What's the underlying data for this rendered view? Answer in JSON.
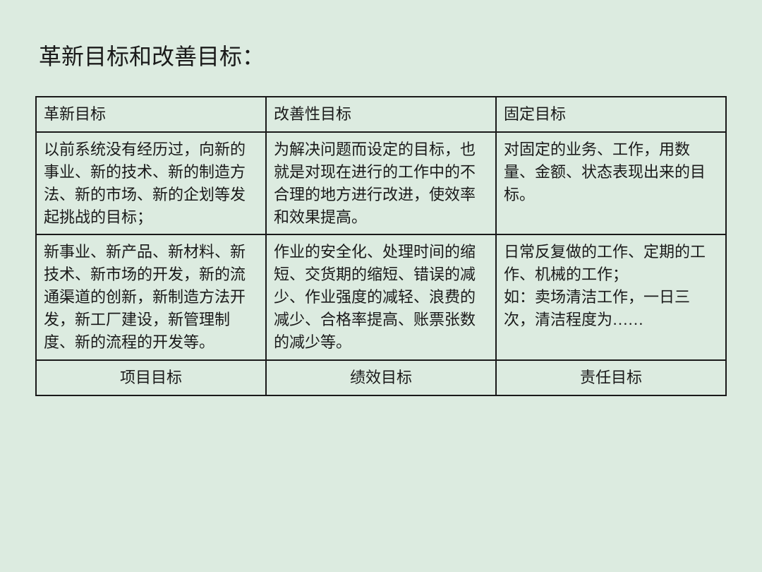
{
  "page": {
    "background_color": "#dcebe0",
    "text_color": "#1a1a1a",
    "border_color": "#1a1a1a",
    "title": "革新目标和改善目标：",
    "title_fontsize": 32,
    "cell_fontsize": 22
  },
  "table": {
    "type": "table",
    "columns": 3,
    "column_widths": [
      "33.3%",
      "33.3%",
      "33.4%"
    ],
    "header": {
      "c0": "革新目标",
      "c1": "改善性目标",
      "c2": "固定目标"
    },
    "row1": {
      "c0": "以前系统没有经历过，向新的事业、新的技术、新的制造方法、新的市场、新的企划等发起挑战的目标；",
      "c1": "为解决问题而设定的目标，也就是对现在进行的工作中的不合理的地方进行改进，使效率和效果提高。",
      "c2": "对固定的业务、工作，用数量、金额、状态表现出来的目标。"
    },
    "row2": {
      "c0": "新事业、新产品、新材料、新技术、新市场的开发，新的流通渠道的创新，新制造方法开发，新工厂建设，新管理制度、新的流程的开发等。",
      "c1": "作业的安全化、处理时间的缩短、交货期的缩短、错误的减少、作业强度的减轻、浪费的减少、合格率提高、账票张数的减少等。",
      "c2": "日常反复做的工作、定期的工作、机械的工作；\n如：卖场清洁工作，一日三次，清洁程度为……"
    },
    "footer": {
      "c0": "项目目标",
      "c1": "绩效目标",
      "c2": "责任目标"
    }
  }
}
